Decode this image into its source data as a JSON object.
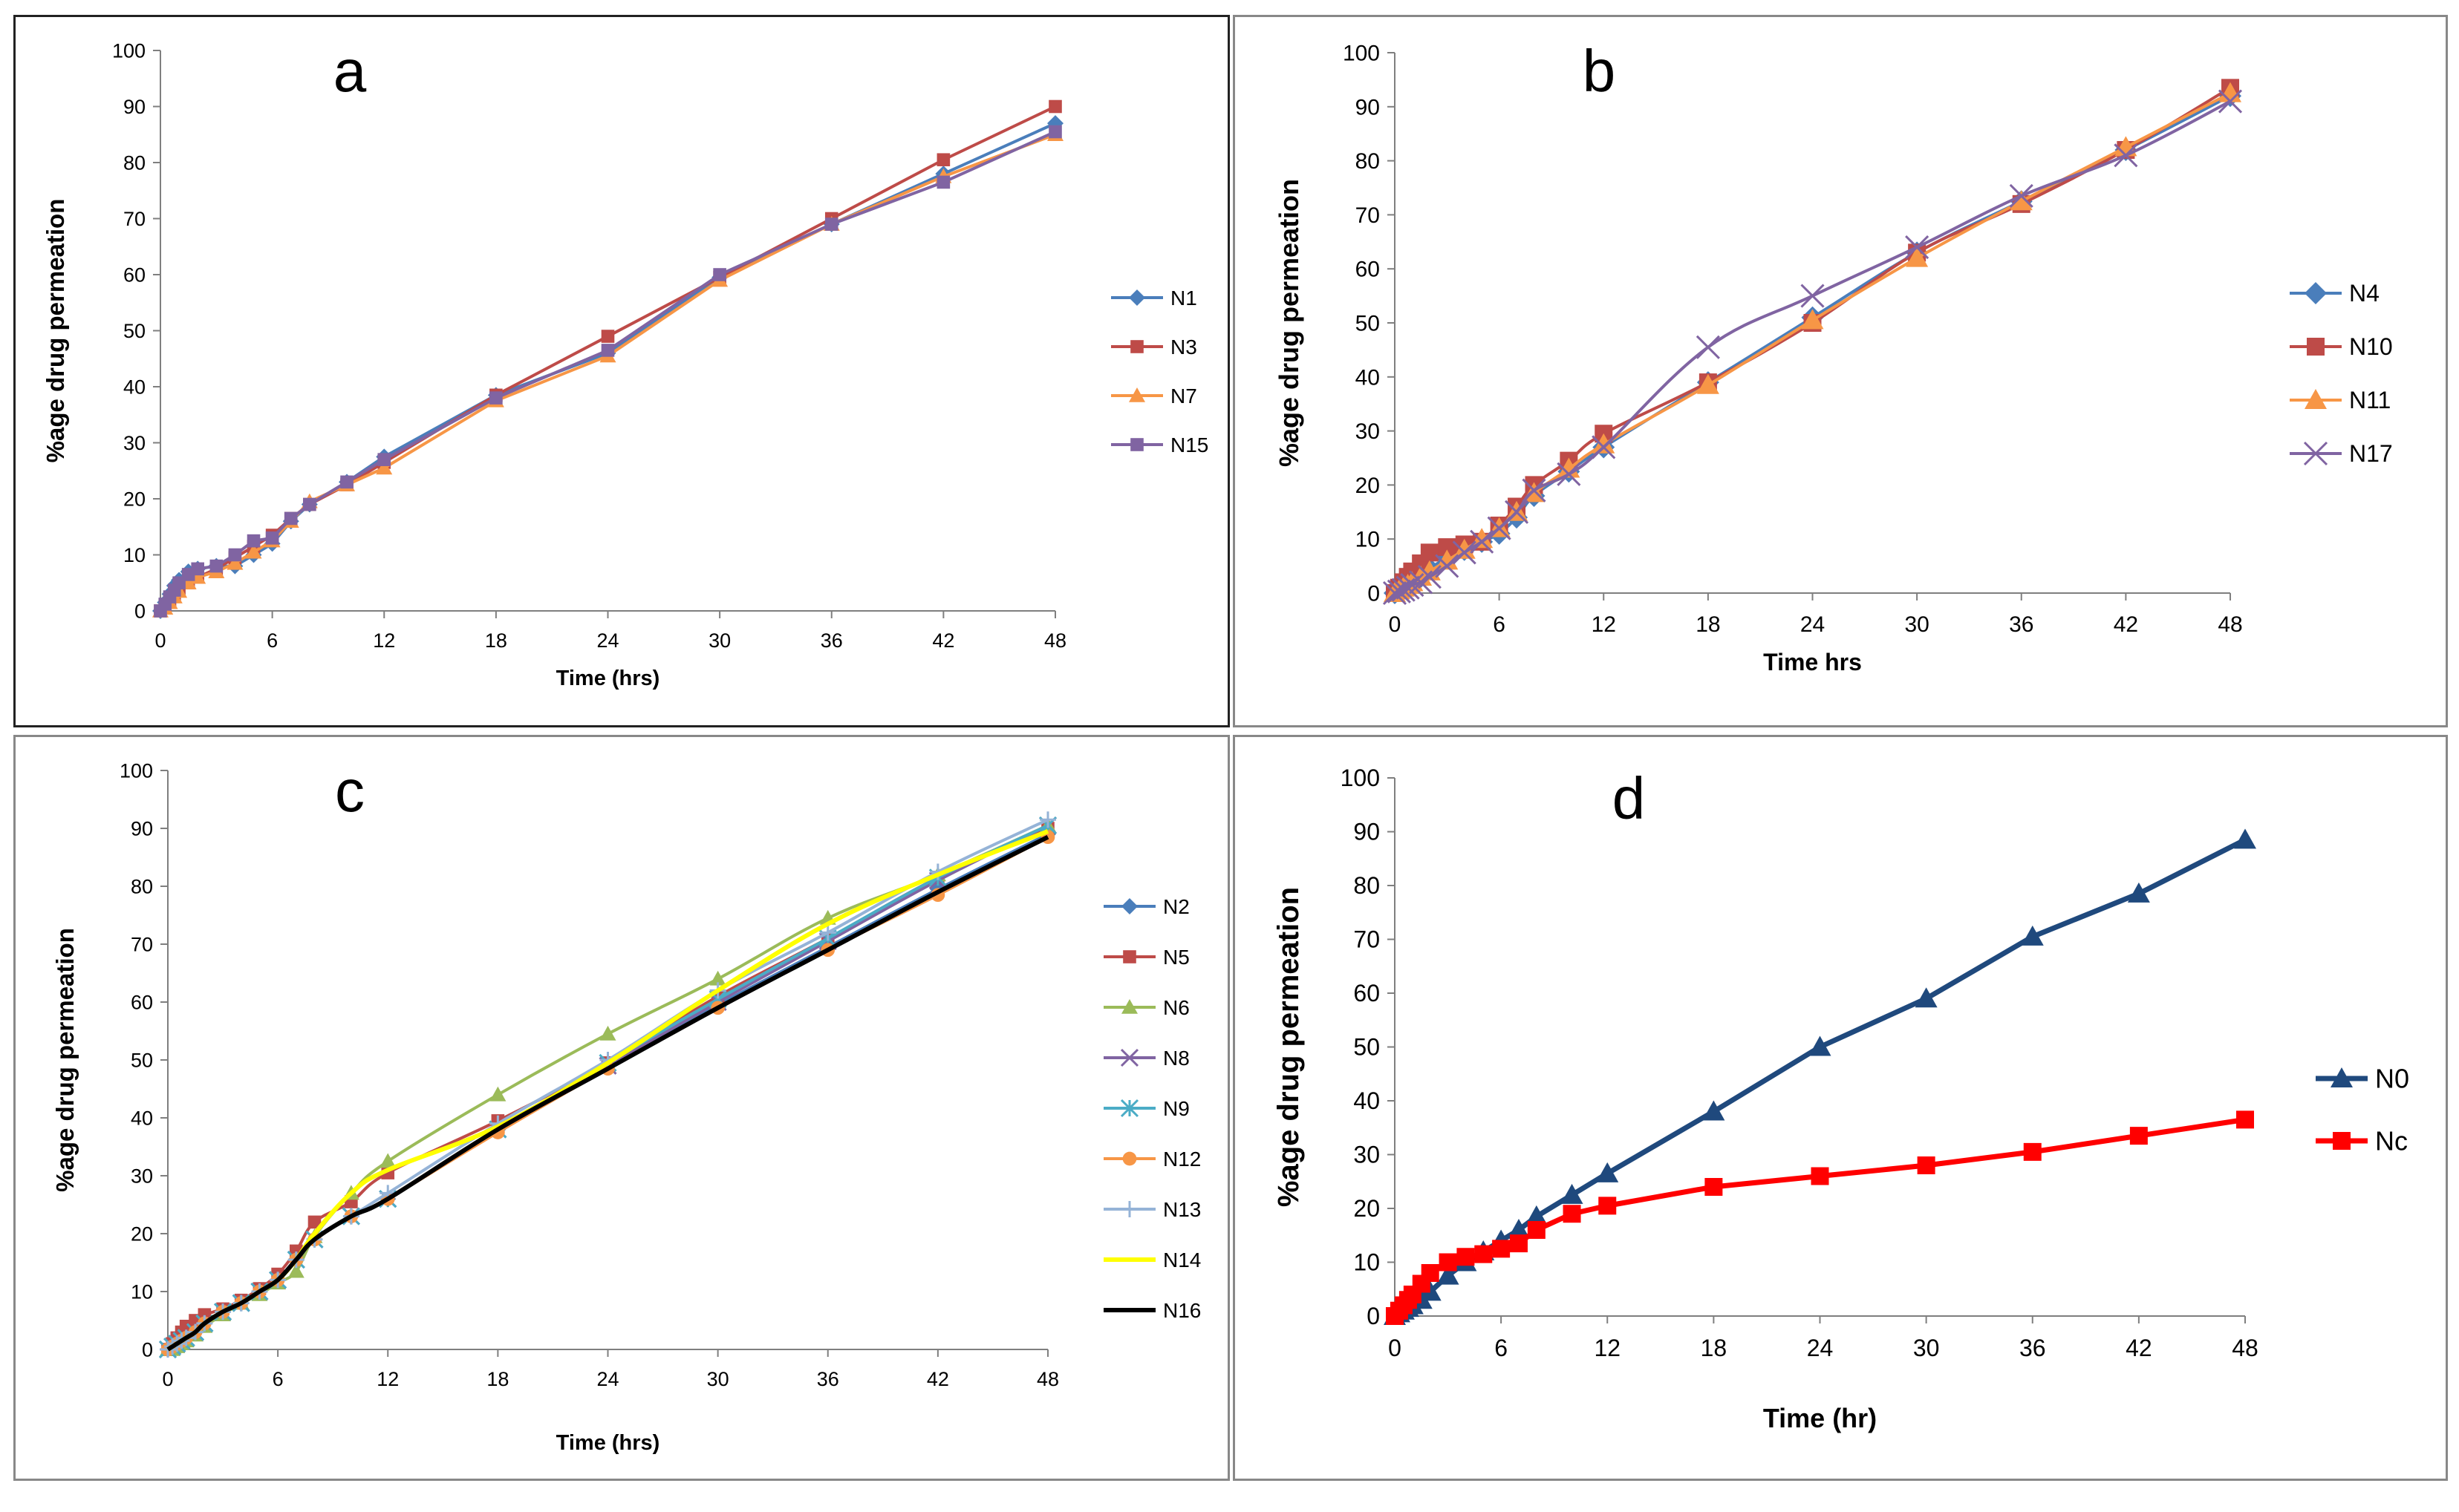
{
  "chart_data": [
    {
      "type": "line",
      "title": "a",
      "xlabel": "Time (hrs)",
      "ylabel": "%age drug permeation",
      "xlim": [
        0,
        48
      ],
      "ylim": [
        0,
        100
      ],
      "xticks": [
        0,
        6,
        12,
        18,
        24,
        30,
        36,
        42,
        48
      ],
      "yticks": [
        0,
        10,
        20,
        30,
        40,
        50,
        60,
        70,
        80,
        90,
        100
      ],
      "x": [
        0,
        0.25,
        0.5,
        0.75,
        1,
        1.5,
        2,
        3,
        4,
        5,
        6,
        7,
        8,
        10,
        12,
        18,
        24,
        30,
        36,
        42,
        48
      ],
      "legend_position": "right",
      "series": [
        {
          "name": "N1",
          "color": "#4a7ebb",
          "marker": "diamond",
          "values": [
            0,
            1.5,
            3,
            4.5,
            5.5,
            7,
            7.5,
            8,
            8,
            10,
            12,
            16,
            19,
            23,
            27.5,
            38.5,
            46,
            59.5,
            69,
            78,
            87
          ]
        },
        {
          "name": "N3",
          "color": "#be4b48",
          "marker": "square",
          "values": [
            0,
            1,
            2,
            3,
            4,
            5,
            6,
            7.5,
            9.5,
            11.5,
            13.5,
            16.5,
            19,
            22.5,
            26.5,
            38.5,
            49,
            59.5,
            70,
            80.5,
            90
          ]
        },
        {
          "name": "N7",
          "color": "#f79646",
          "marker": "triangle",
          "values": [
            0,
            0.5,
            1.5,
            2.5,
            3.5,
            5,
            6,
            7,
            8.5,
            10.5,
            12.5,
            16,
            19.5,
            22.5,
            25.5,
            37.5,
            45.5,
            59,
            69,
            77.5,
            85
          ]
        },
        {
          "name": "N15",
          "color": "#8064a2",
          "marker": "square",
          "values": [
            0,
            1.2,
            2.5,
            3.7,
            5,
            6.5,
            7.5,
            8,
            10,
            12.5,
            13,
            16.5,
            19,
            23,
            27,
            38,
            46.5,
            60,
            69,
            76.5,
            85.5
          ]
        }
      ]
    },
    {
      "type": "line",
      "title": "b",
      "xlabel": "Time hrs",
      "ylabel": "%age drug permeation",
      "xlim": [
        0,
        48
      ],
      "ylim": [
        0,
        100
      ],
      "xticks": [
        0,
        6,
        12,
        18,
        24,
        30,
        36,
        42,
        48
      ],
      "yticks": [
        0,
        10,
        20,
        30,
        40,
        50,
        60,
        70,
        80,
        90,
        100
      ],
      "x": [
        0,
        0.25,
        0.5,
        0.75,
        1,
        1.5,
        2,
        3,
        4,
        5,
        6,
        7,
        8,
        10,
        12,
        18,
        24,
        30,
        36,
        42,
        48
      ],
      "legend_position": "right",
      "series": [
        {
          "name": "N4",
          "color": "#4a7ebb",
          "marker": "diamond",
          "values": [
            0,
            0.5,
            1,
            1.5,
            2,
            3,
            4.5,
            6.5,
            8,
            9.5,
            11,
            14,
            18,
            22.5,
            27,
            39,
            51,
            63,
            72.5,
            82,
            92
          ]
        },
        {
          "name": "N10",
          "color": "#be4b48",
          "marker": "square",
          "values": [
            0,
            1,
            2,
            3,
            4,
            5.5,
            7.5,
            8.5,
            9,
            9.5,
            12.5,
            16,
            20,
            24.5,
            29.5,
            39,
            50,
            63,
            72,
            82,
            93.5
          ]
        },
        {
          "name": "N11",
          "color": "#f79646",
          "marker": "triangle",
          "values": [
            0,
            0.5,
            1,
            1.5,
            2,
            3,
            4,
            6,
            8,
            10,
            12,
            15,
            18.5,
            23,
            27.5,
            38.5,
            50.5,
            62,
            72.5,
            82.5,
            92.5
          ]
        },
        {
          "name": "N17",
          "color": "#8064a2",
          "marker": "x",
          "values": [
            0,
            0.3,
            0.6,
            1,
            1.5,
            2,
            3,
            5,
            7.5,
            9.5,
            12,
            15,
            19,
            22,
            27,
            45.5,
            55,
            64,
            73.5,
            81,
            91
          ]
        }
      ]
    },
    {
      "type": "line",
      "title": "c",
      "xlabel": "Time (hrs)",
      "ylabel": "%age drug permeation",
      "xlim": [
        0,
        48
      ],
      "ylim": [
        0,
        100
      ],
      "xticks": [
        0,
        6,
        12,
        18,
        24,
        30,
        36,
        42,
        48
      ],
      "yticks": [
        0,
        10,
        20,
        30,
        40,
        50,
        60,
        70,
        80,
        90,
        100
      ],
      "x": [
        0,
        0.25,
        0.5,
        0.75,
        1,
        1.5,
        2,
        3,
        4,
        5,
        6,
        7,
        8,
        10,
        12,
        18,
        24,
        30,
        36,
        42,
        48
      ],
      "legend_position": "right",
      "series": [
        {
          "name": "N2",
          "color": "#4a7ebb",
          "marker": "diamond",
          "values": [
            0,
            0.5,
            1,
            1.5,
            2,
            3,
            4.5,
            6.5,
            8,
            10,
            12,
            15.5,
            19,
            23,
            26,
            38,
            49,
            59.5,
            69.5,
            79.5,
            89
          ]
        },
        {
          "name": "N5",
          "color": "#be4b48",
          "marker": "square",
          "values": [
            0,
            1,
            2,
            3,
            4,
            5,
            6,
            7,
            8.5,
            10.5,
            13,
            17,
            22,
            25.5,
            30.5,
            39.5,
            49.5,
            61,
            71,
            81.5,
            90
          ]
        },
        {
          "name": "N6",
          "color": "#9bbb59",
          "marker": "triangle",
          "values": [
            0,
            0,
            0.5,
            1,
            1.5,
            2.5,
            4,
            6,
            8,
            9.5,
            11.5,
            13.5,
            19.5,
            27,
            32.5,
            44,
            54.5,
            64,
            74.5,
            82,
            90.5
          ]
        },
        {
          "name": "N8",
          "color": "#8064a2",
          "marker": "x",
          "values": [
            0,
            0.5,
            1,
            1.5,
            2,
            3,
            4.5,
            6.5,
            8,
            10,
            12,
            15.5,
            19,
            23,
            26,
            38,
            49,
            60,
            70.5,
            81,
            90.5
          ]
        },
        {
          "name": "N9",
          "color": "#4bacc6",
          "marker": "asterisk",
          "values": [
            0,
            0.5,
            1,
            1.5,
            2,
            3,
            4.5,
            6.5,
            8,
            10,
            12,
            15.5,
            19,
            23,
            26,
            38,
            49.5,
            60.5,
            71,
            81.5,
            90.5
          ]
        },
        {
          "name": "N12",
          "color": "#f79646",
          "marker": "circle",
          "values": [
            0,
            0.5,
            1,
            1.5,
            2,
            3,
            4.5,
            6.5,
            8,
            10,
            12,
            15.5,
            19,
            23,
            26,
            37.5,
            48.5,
            59,
            69,
            78.5,
            88.5
          ]
        },
        {
          "name": "N13",
          "color": "#95b3d7",
          "marker": "plus",
          "values": [
            0,
            0.5,
            1,
            1.5,
            2,
            3,
            4.5,
            6.5,
            8,
            10,
            12,
            15.5,
            19,
            23,
            27,
            39,
            50,
            62,
            72,
            82.5,
            91.5
          ]
        },
        {
          "name": "N14",
          "color": "#ffff00",
          "marker": "none",
          "values": [
            0,
            0.5,
            1,
            1.5,
            2,
            3,
            4.5,
            6.5,
            8,
            10,
            12,
            15.5,
            20,
            27,
            31,
            38.5,
            49.5,
            62,
            73.5,
            82,
            89.5
          ]
        },
        {
          "name": "N16",
          "color": "#000000",
          "marker": "none",
          "values": [
            0,
            0.5,
            1,
            1.5,
            2,
            3,
            4.5,
            6.5,
            8,
            10,
            12,
            15.5,
            19,
            23,
            26,
            38,
            48.5,
            59,
            69,
            79,
            88.5
          ]
        }
      ]
    },
    {
      "type": "line",
      "title": "d",
      "xlabel": "Time (hr)",
      "ylabel": "%age drug permeation",
      "xlim": [
        0,
        48
      ],
      "ylim": [
        0,
        100
      ],
      "xticks": [
        0,
        6,
        12,
        18,
        24,
        30,
        36,
        42,
        48
      ],
      "yticks": [
        0,
        10,
        20,
        30,
        40,
        50,
        60,
        70,
        80,
        90,
        100
      ],
      "x": [
        0,
        0.25,
        0.5,
        0.75,
        1,
        1.5,
        2,
        3,
        4,
        5,
        6,
        7,
        8,
        10,
        12,
        18,
        24,
        30,
        36,
        42,
        48
      ],
      "legend_position": "right",
      "series": [
        {
          "name": "N0",
          "color": "#1f497d",
          "marker": "triangle",
          "values": [
            0,
            0.5,
            1,
            1.5,
            2,
            3,
            4.5,
            7.5,
            10,
            12,
            14,
            16,
            18.5,
            22.5,
            26.5,
            38,
            50,
            59,
            70.5,
            78.5,
            88.5
          ]
        },
        {
          "name": "Nc",
          "color": "#ff0000",
          "marker": "square",
          "values": [
            0,
            1,
            2,
            3,
            4,
            6,
            8,
            10,
            11,
            11.5,
            12.5,
            13.5,
            16,
            19,
            20.5,
            24,
            26,
            28,
            30.5,
            33.5,
            36.5
          ]
        }
      ]
    }
  ]
}
